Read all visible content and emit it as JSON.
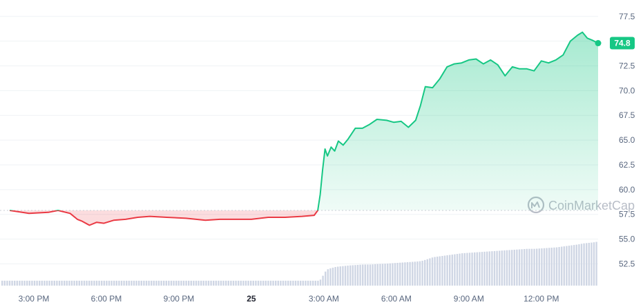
{
  "watermark": "CoinMarketCap",
  "colors": {
    "up": "#16c784",
    "down": "#ea3943",
    "volume": "#cfd6e4",
    "grid": "#eff2f5",
    "baseline": "#c9cdd4",
    "axis_text": "#58667e"
  },
  "chart_data": {
    "type": "line",
    "title": "",
    "xlabel": "",
    "ylabel": "",
    "ylim": [
      50.3,
      78.6
    ],
    "yticks": [
      "77.5",
      "75.0",
      "72.5",
      "70.0",
      "67.5",
      "65.0",
      "62.5",
      "60.0",
      "57.5",
      "55.0",
      "52.5"
    ],
    "ytick_values": [
      77.5,
      75.0,
      72.5,
      70.0,
      67.5,
      65.0,
      62.5,
      60.0,
      57.5,
      55.0,
      52.5
    ],
    "xticks": [
      "3:00 PM",
      "6:00 PM",
      "9:00 PM",
      "25",
      "3:00 AM",
      "6:00 AM",
      "9:00 AM",
      "12:00 PM"
    ],
    "xtick_hours": [
      1,
      4,
      7,
      10,
      13,
      16,
      19,
      22
    ],
    "baseline": 57.9,
    "last_price": "74.8",
    "grid": true,
    "x_hours": [
      0,
      0.8,
      1.6,
      2.0,
      2.5,
      2.8,
      3.0,
      3.3,
      3.6,
      3.9,
      4.3,
      4.8,
      5.3,
      5.8,
      6.5,
      7.3,
      8.1,
      8.7,
      9.3,
      10.0,
      10.7,
      11.4,
      12.1,
      12.6,
      12.75,
      12.85,
      12.95,
      13.05,
      13.15,
      13.3,
      13.45,
      13.6,
      13.8,
      14.0,
      14.3,
      14.6,
      14.9,
      15.2,
      15.6,
      15.9,
      16.2,
      16.5,
      16.8,
      17.0,
      17.2,
      17.5,
      17.8,
      18.1,
      18.4,
      18.7,
      19.0,
      19.3,
      19.6,
      19.9,
      20.2,
      20.5,
      20.8,
      21.1,
      21.4,
      21.7,
      22.0,
      22.3,
      22.6,
      22.9,
      23.2,
      23.5,
      23.7,
      23.9,
      24.1,
      24.35
    ],
    "values": [
      57.9,
      57.6,
      57.7,
      57.9,
      57.6,
      57.0,
      56.8,
      56.4,
      56.7,
      56.6,
      56.9,
      57.0,
      57.2,
      57.3,
      57.2,
      57.1,
      56.9,
      57.0,
      57.0,
      57.0,
      57.2,
      57.2,
      57.3,
      57.4,
      57.9,
      59.5,
      62.0,
      64.1,
      63.4,
      64.3,
      63.9,
      64.9,
      64.5,
      65.1,
      66.2,
      66.2,
      66.6,
      67.1,
      67.0,
      66.8,
      66.9,
      66.3,
      67.0,
      68.5,
      70.4,
      70.3,
      71.2,
      72.4,
      72.7,
      72.8,
      73.1,
      73.2,
      72.7,
      73.1,
      72.6,
      71.5,
      72.4,
      72.2,
      72.2,
      72.0,
      73.0,
      72.8,
      73.1,
      73.6,
      75.0,
      75.6,
      75.9,
      75.3,
      75.1,
      74.8
    ],
    "volume": [
      1,
      1,
      1,
      1,
      1,
      1,
      1,
      1,
      1,
      1,
      1,
      1,
      1,
      1,
      1,
      1,
      1,
      1,
      1,
      1,
      1,
      1,
      1,
      1,
      1,
      1.3,
      2.2,
      3.0,
      3.4,
      3.6,
      3.8,
      3.9,
      4.0,
      4.1,
      4.2,
      4.3,
      4.3,
      4.4,
      4.5,
      4.6,
      4.7,
      4.8,
      4.9,
      5.0,
      5.3,
      5.8,
      6.0,
      6.2,
      6.4,
      6.6,
      6.7,
      6.8,
      6.9,
      7.0,
      7.1,
      7.2,
      7.3,
      7.4,
      7.5,
      7.5,
      7.6,
      7.7,
      7.8,
      8.0,
      8.2,
      8.4,
      8.6,
      8.7,
      8.8,
      9.0
    ]
  }
}
